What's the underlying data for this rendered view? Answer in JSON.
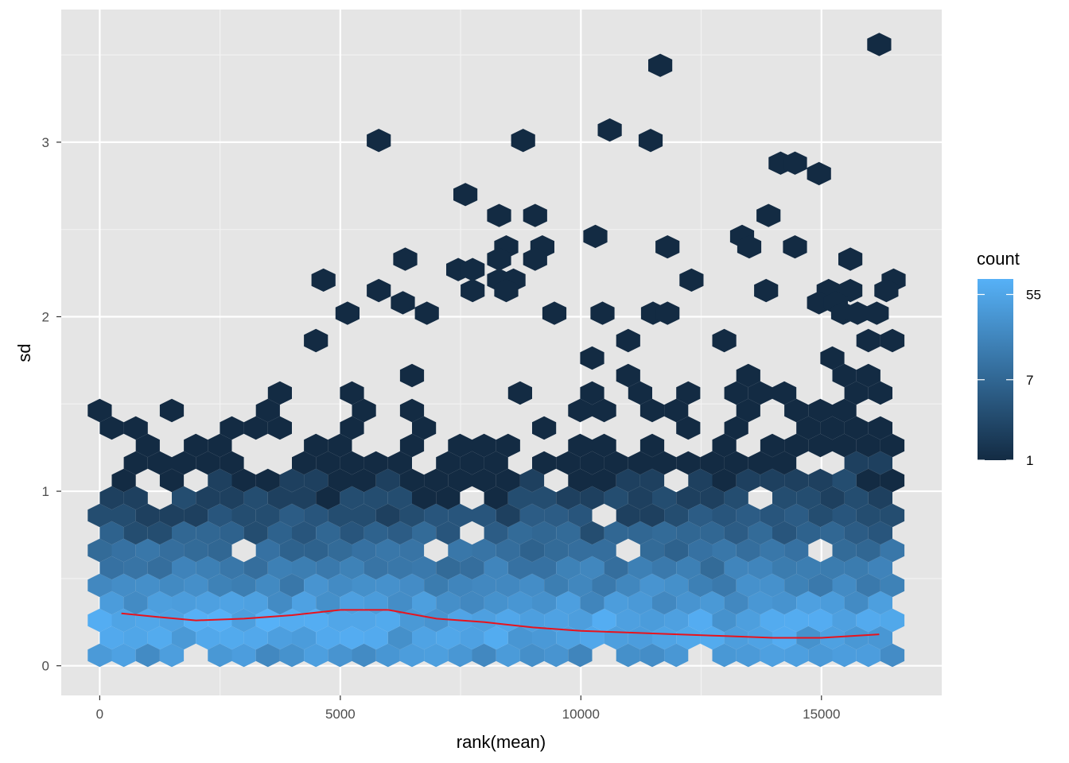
{
  "chart_data": {
    "type": "hexbin",
    "xlabel": "rank(mean)",
    "ylabel": "sd",
    "xlim": [
      -800,
      17500
    ],
    "ylim": [
      -0.17,
      3.76
    ],
    "x_ticks": [
      0,
      5000,
      10000,
      15000
    ],
    "x_tick_labels": [
      "0",
      "5000",
      "10000",
      "15000"
    ],
    "y_ticks": [
      0,
      1,
      2,
      3
    ],
    "y_tick_labels": [
      "0",
      "1",
      "2",
      "3"
    ],
    "grid": true,
    "panel_background": "#e5e5e5",
    "legend": {
      "title": "count",
      "position": "right",
      "scale": "log",
      "breaks": [
        1,
        7,
        55
      ],
      "break_labels": [
        "1",
        "7",
        "55"
      ],
      "min": 1,
      "max": 80,
      "low_color": "#132b43",
      "high_color": "#56b1f7"
    },
    "smooth_line": {
      "color": "#e8131d",
      "x": [
        450,
        1200,
        2000,
        3000,
        4000,
        5000,
        6000,
        7000,
        8000,
        9000,
        10000,
        11000,
        12000,
        13000,
        14000,
        15000,
        16200
      ],
      "y": [
        0.3,
        0.28,
        0.26,
        0.27,
        0.29,
        0.32,
        0.32,
        0.27,
        0.25,
        0.22,
        0.2,
        0.19,
        0.18,
        0.17,
        0.16,
        0.16,
        0.18
      ]
    },
    "outliers": [
      {
        "x": 16200,
        "y": 3.56
      },
      {
        "x": 11650,
        "y": 3.44
      },
      {
        "x": 10600,
        "y": 3.07
      },
      {
        "x": 5800,
        "y": 3.01
      },
      {
        "x": 8800,
        "y": 3.01
      },
      {
        "x": 11450,
        "y": 3.01
      },
      {
        "x": 14150,
        "y": 2.88
      },
      {
        "x": 14450,
        "y": 2.88
      },
      {
        "x": 14950,
        "y": 2.82
      },
      {
        "x": 7600,
        "y": 2.7
      },
      {
        "x": 8300,
        "y": 2.58
      },
      {
        "x": 9050,
        "y": 2.58
      },
      {
        "x": 13900,
        "y": 2.58
      },
      {
        "x": 10300,
        "y": 2.46
      },
      {
        "x": 13350,
        "y": 2.46
      },
      {
        "x": 8450,
        "y": 2.4
      },
      {
        "x": 9200,
        "y": 2.4
      },
      {
        "x": 11800,
        "y": 2.4
      },
      {
        "x": 13500,
        "y": 2.4
      },
      {
        "x": 14450,
        "y": 2.4
      },
      {
        "x": 6350,
        "y": 2.33
      },
      {
        "x": 8300,
        "y": 2.33
      },
      {
        "x": 9050,
        "y": 2.33
      },
      {
        "x": 15600,
        "y": 2.33
      },
      {
        "x": 7450,
        "y": 2.27
      },
      {
        "x": 7750,
        "y": 2.27
      },
      {
        "x": 4650,
        "y": 2.21
      },
      {
        "x": 8300,
        "y": 2.21
      },
      {
        "x": 8600,
        "y": 2.21
      },
      {
        "x": 12300,
        "y": 2.21
      },
      {
        "x": 16500,
        "y": 2.21
      },
      {
        "x": 5800,
        "y": 2.15
      },
      {
        "x": 7750,
        "y": 2.15
      },
      {
        "x": 8450,
        "y": 2.15
      },
      {
        "x": 13850,
        "y": 2.15
      },
      {
        "x": 15150,
        "y": 2.15
      },
      {
        "x": 15600,
        "y": 2.15
      },
      {
        "x": 16350,
        "y": 2.15
      },
      {
        "x": 6300,
        "y": 2.08
      },
      {
        "x": 14950,
        "y": 2.08
      },
      {
        "x": 15300,
        "y": 2.08
      },
      {
        "x": 5150,
        "y": 2.02
      },
      {
        "x": 6800,
        "y": 2.02
      },
      {
        "x": 9450,
        "y": 2.02
      },
      {
        "x": 10450,
        "y": 2.02
      },
      {
        "x": 11500,
        "y": 2.02
      },
      {
        "x": 11800,
        "y": 2.02
      },
      {
        "x": 15450,
        "y": 2.02
      },
      {
        "x": 15750,
        "y": 2.02
      },
      {
        "x": 16150,
        "y": 2.02
      }
    ],
    "band": {
      "x_range": [
        0,
        16700
      ],
      "bottom_y": 0.06,
      "dense_top_y": 0.95,
      "sparse_top_y": 1.95
    }
  }
}
